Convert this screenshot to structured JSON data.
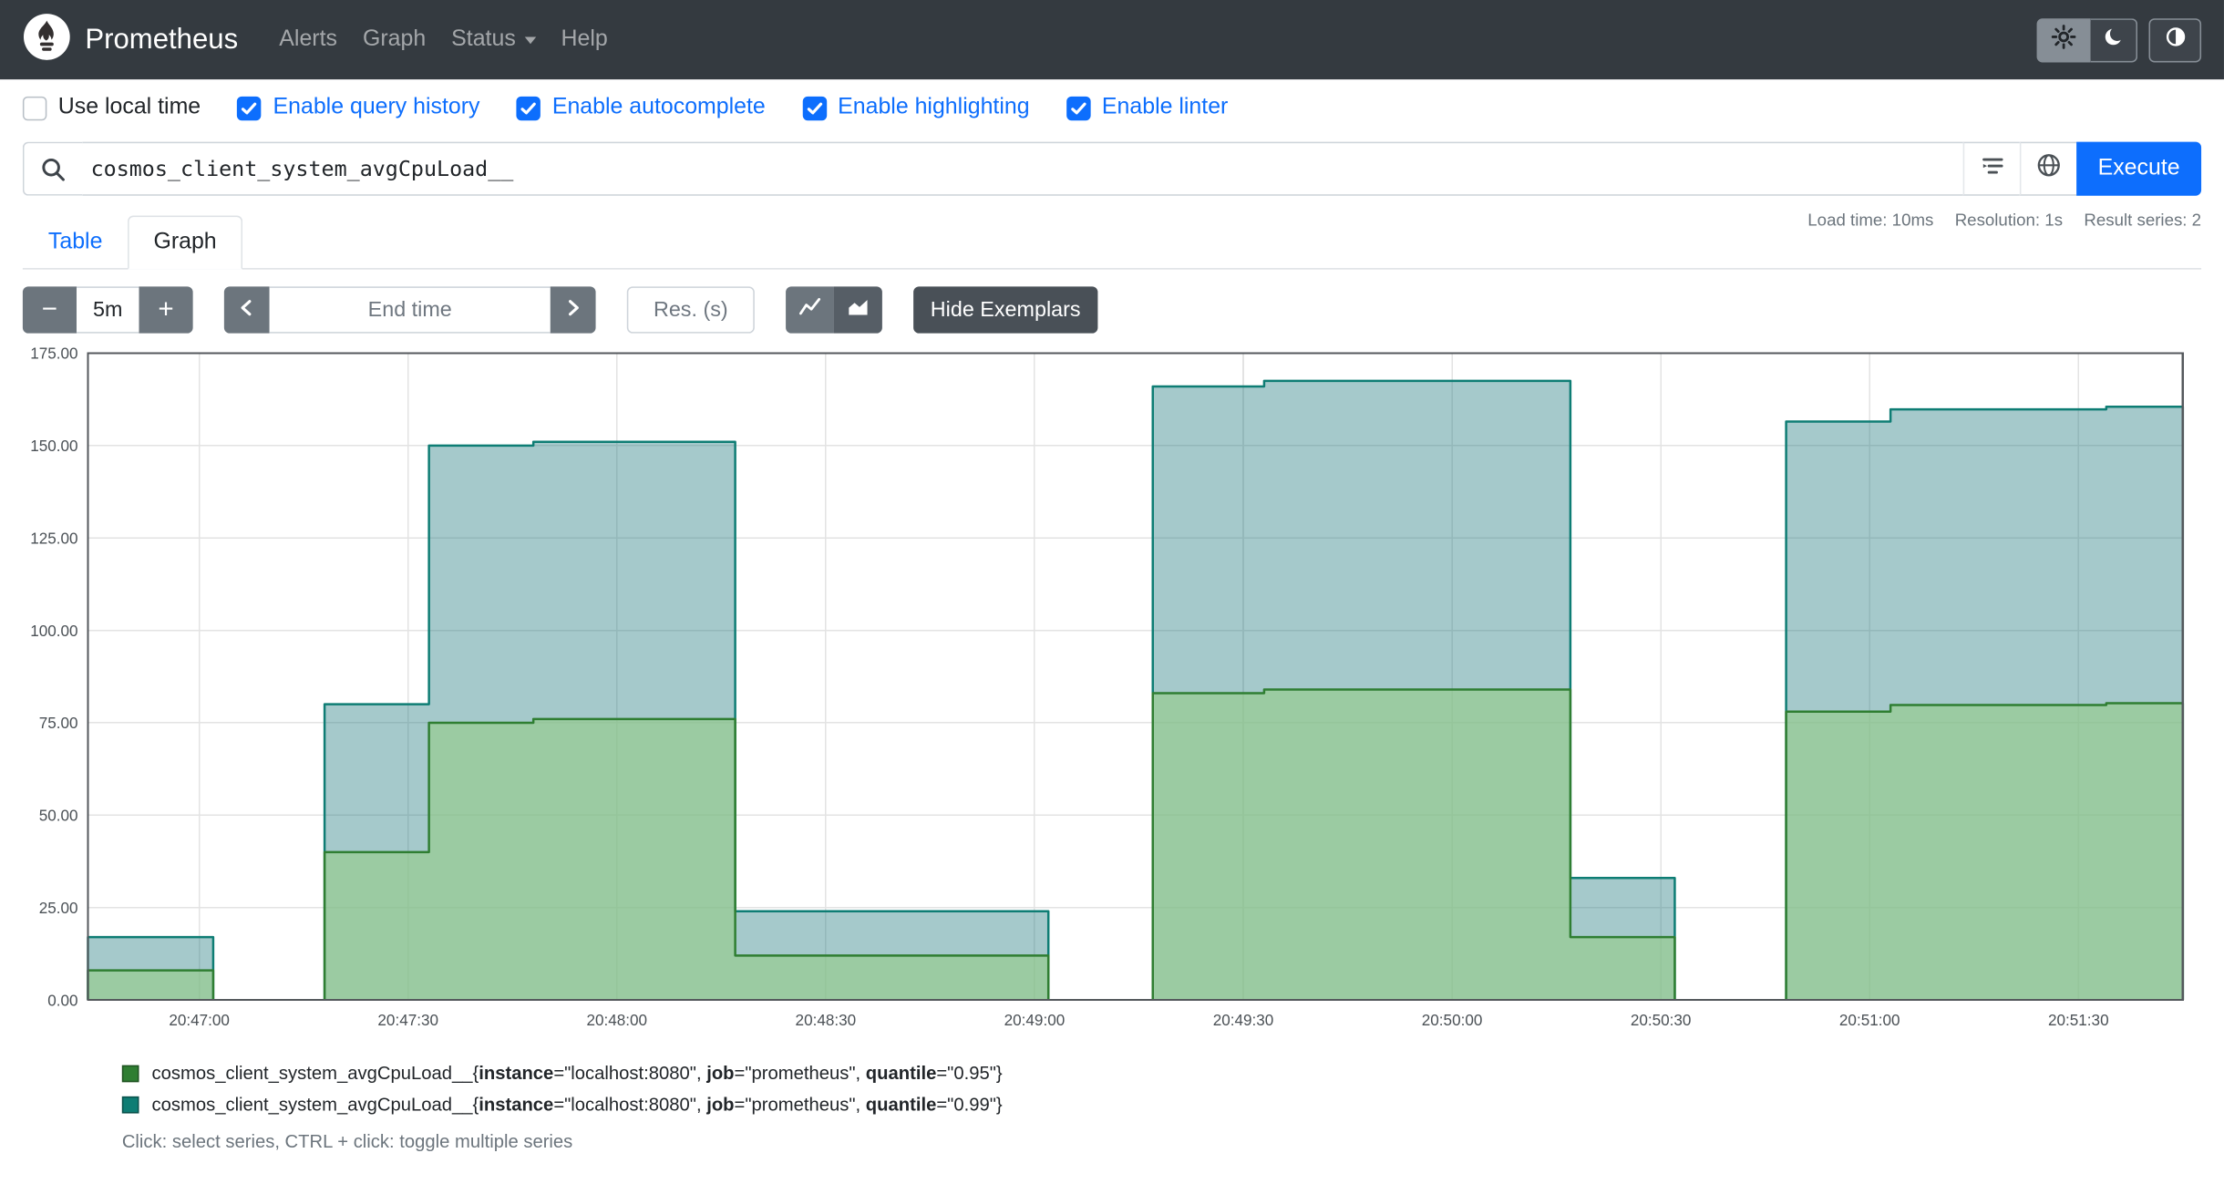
{
  "navbar": {
    "brand": "Prometheus",
    "items": [
      {
        "label": "Alerts"
      },
      {
        "label": "Graph"
      },
      {
        "label": "Status",
        "caret": true
      },
      {
        "label": "Help"
      }
    ]
  },
  "icons": {
    "search": "magnifier",
    "settings": "gear",
    "theme_dark": "moon",
    "theme_contrast": "half-circle",
    "format": "format-lines",
    "explorer": "globe",
    "prev": "chevron-left",
    "next": "chevron-right",
    "line_graph": "line-chart",
    "stacked_graph": "area-chart"
  },
  "settings": [
    {
      "label": "Use local time",
      "checked": false
    },
    {
      "label": "Enable query history",
      "checked": true
    },
    {
      "label": "Enable autocomplete",
      "checked": true
    },
    {
      "label": "Enable highlighting",
      "checked": true
    },
    {
      "label": "Enable linter",
      "checked": true
    }
  ],
  "query": {
    "value": "cosmos_client_system_avgCpuLoad__",
    "execute_label": "Execute"
  },
  "stats": {
    "load_time": "Load time: 10ms",
    "resolution": "Resolution: 1s",
    "result_series": "Result series: 2"
  },
  "tabs": [
    {
      "label": "Table",
      "active": false
    },
    {
      "label": "Graph",
      "active": true
    }
  ],
  "controls": {
    "range_decrease_label": "−",
    "range_value": "5m",
    "range_increase_label": "+",
    "end_time_placeholder": "End time",
    "resolution_placeholder": "Res. (s)",
    "hide_exemplars_label": "Hide Exemplars"
  },
  "legend": [
    {
      "color": "#2f7e32",
      "metric": "cosmos_client_system_avgCpuLoad__",
      "labels": [
        {
          "name": "instance",
          "value": "localhost:8080"
        },
        {
          "name": "job",
          "value": "prometheus"
        },
        {
          "name": "quantile",
          "value": "0.95"
        }
      ]
    },
    {
      "color": "#0e7d74",
      "metric": "cosmos_client_system_avgCpuLoad__",
      "labels": [
        {
          "name": "instance",
          "value": "localhost:8080"
        },
        {
          "name": "job",
          "value": "prometheus"
        },
        {
          "name": "quantile",
          "value": "0.99"
        }
      ]
    }
  ],
  "legend_hint": "Click: select series, CTRL + click: toggle multiple series",
  "chart_data": {
    "type": "area",
    "title": "",
    "xlabel": "",
    "ylabel": "",
    "grid": true,
    "legend_position": "bottom",
    "x_axis": {
      "note": "seconds relative to 20:46:44, step-after interpolation, null gaps between segments",
      "domain_s": [
        0,
        301
      ],
      "ticks": [
        {
          "t": 16,
          "label": "20:47:00"
        },
        {
          "t": 46,
          "label": "20:47:30"
        },
        {
          "t": 76,
          "label": "20:48:00"
        },
        {
          "t": 106,
          "label": "20:48:30"
        },
        {
          "t": 136,
          "label": "20:49:00"
        },
        {
          "t": 166,
          "label": "20:49:30"
        },
        {
          "t": 196,
          "label": "20:50:00"
        },
        {
          "t": 226,
          "label": "20:50:30"
        },
        {
          "t": 256,
          "label": "20:51:00"
        },
        {
          "t": 286,
          "label": "20:51:30"
        }
      ]
    },
    "y_axis": {
      "min": 0,
      "max": 175,
      "tick_step": 25,
      "tick_labels": [
        "0.00",
        "25.00",
        "50.00",
        "75.00",
        "100.00",
        "125.00",
        "150.00",
        "175.00"
      ]
    },
    "series": [
      {
        "name": "cosmos_client_system_avgCpuLoad__{quantile=\"0.99\"}",
        "color": "#0e7d74",
        "fill": "rgba(30,120,125,0.40)",
        "segments": [
          {
            "points": [
              [
                0,
                17
              ]
            ],
            "end": 18
          },
          {
            "points": [
              [
                34,
                80
              ],
              [
                49,
                150
              ],
              [
                64,
                151
              ],
              [
                93,
                24
              ]
            ],
            "end": 138
          },
          {
            "points": [
              [
                153,
                166
              ],
              [
                169,
                167.5
              ],
              [
                213,
                33
              ]
            ],
            "end": 228
          },
          {
            "points": [
              [
                244,
                156.5
              ],
              [
                259,
                159.8
              ],
              [
                290,
                160.5
              ]
            ],
            "end": 301
          }
        ]
      },
      {
        "name": "cosmos_client_system_avgCpuLoad__{quantile=\"0.95\"}",
        "color": "#2f7e32",
        "fill": "rgba(150,205,135,0.60)",
        "segments": [
          {
            "points": [
              [
                0,
                8
              ]
            ],
            "end": 18
          },
          {
            "points": [
              [
                34,
                40
              ],
              [
                49,
                75
              ],
              [
                64,
                76
              ],
              [
                93,
                12
              ]
            ],
            "end": 138
          },
          {
            "points": [
              [
                153,
                83
              ],
              [
                169,
                84
              ],
              [
                213,
                17
              ]
            ],
            "end": 228
          },
          {
            "points": [
              [
                244,
                78
              ],
              [
                259,
                79.8
              ],
              [
                290,
                80.3
              ]
            ],
            "end": 301
          }
        ]
      }
    ]
  }
}
